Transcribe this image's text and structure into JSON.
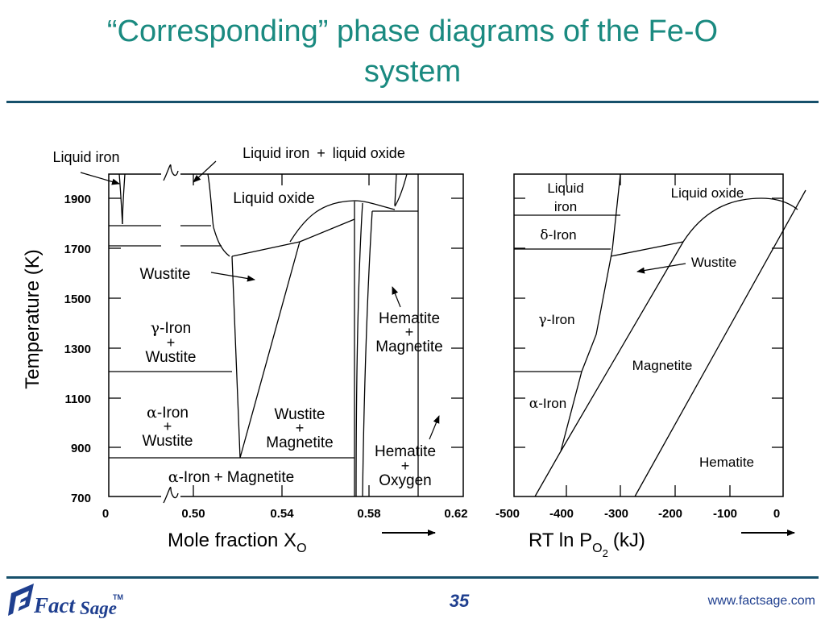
{
  "slide": {
    "title_line1": "“Corresponding” phase diagrams of the Fe-O",
    "title_line2": "system",
    "page_number": "35",
    "url": "www.factsage.com",
    "logo_text_fact": "Fact",
    "logo_text_sage": "Sage",
    "logo_tm": "TM"
  },
  "left_plot": {
    "ylabel": "Temperature (K)",
    "y_ticks": [
      "1900",
      "1700",
      "1500",
      "1300",
      "1100",
      "900",
      "700"
    ],
    "x_ticks": [
      "0",
      "0.50",
      "0.54",
      "0.58",
      "0.62"
    ],
    "xlabel_main": "Mole fraction X",
    "xlabel_sub": "O",
    "regions": {
      "liquid_iron": "Liquid iron",
      "liquid_iron_oxide_a": "Liquid iron",
      "liquid_iron_oxide_plus": "+",
      "liquid_iron_oxide_b": "liquid oxide",
      "liquid_oxide": "Liquid oxide",
      "wustite": "Wustite",
      "gamma_symbol": "γ",
      "gamma_iron": "-Iron",
      "gamma_plus": "+",
      "gamma_wustite": "Wustite",
      "alpha_symbol": "α",
      "alpha_iron": "-Iron",
      "alpha_plus": "+",
      "alpha_wustite": "Wustite",
      "alpha_mag_symbol": "α",
      "alpha_mag_iron": "-Iron",
      "alpha_mag_plus": "+",
      "alpha_mag_magnetite": "Magnetite",
      "wm_wustite": "Wustite",
      "wm_plus": "+",
      "wm_magnetite": "Magnetite",
      "hm_hematite": "Hematite",
      "hm_plus": "+",
      "hm_magnetite": "Magnetite",
      "ho_hematite": "Hematite",
      "ho_plus": "+",
      "ho_oxygen": "Oxygen"
    }
  },
  "right_plot": {
    "x_ticks": [
      "-500",
      "-400",
      "-300",
      "-200",
      "-100",
      "0"
    ],
    "xlabel_main": "RT ln P",
    "xlabel_sub_o": "O",
    "xlabel_sub_2": "2",
    "xlabel_unit": "(kJ)",
    "regions": {
      "liquid_iron_a": "Liquid",
      "liquid_iron_b": "iron",
      "liquid_oxide": "Liquid oxide",
      "delta_symbol": "δ",
      "delta_iron": "-Iron",
      "wustite": "Wustite",
      "gamma_symbol": "γ",
      "gamma_iron": "-Iron",
      "magnetite": "Magnetite",
      "alpha_symbol": "α",
      "alpha_iron": "-Iron",
      "hematite": "Hematite"
    }
  },
  "colors": {
    "title": "#1a8a80",
    "rule": "#16506b",
    "footer_text": "#1f3f8f",
    "logo": "#1f3f8f"
  }
}
